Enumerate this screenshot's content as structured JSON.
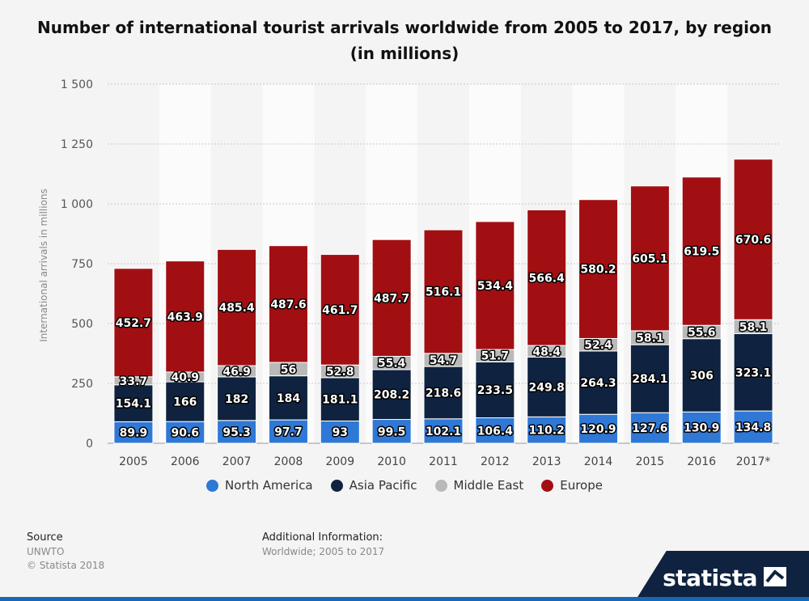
{
  "title_line1": "Number of international tourist arrivals worldwide from 2005 to 2017, by region",
  "title_line2": "(in millions)",
  "chart_data": {
    "type": "bar",
    "stacked": true,
    "title": "Number of international tourist arrivals worldwide from 2005 to 2017, by region (in millions)",
    "ylabel": "International arrivals in millions",
    "xlabel": "",
    "ylim": [
      0,
      1500
    ],
    "yticks": [
      0,
      250,
      500,
      750,
      1000,
      1250,
      1500
    ],
    "ytick_labels": [
      "0",
      "250",
      "500",
      "750",
      "1 000",
      "1 250",
      "1 500"
    ],
    "grid": true,
    "legend_position": "bottom",
    "categories": [
      "2005",
      "2006",
      "2007",
      "2008",
      "2009",
      "2010",
      "2011",
      "2012",
      "2013",
      "2014",
      "2015",
      "2016",
      "2017*"
    ],
    "series": [
      {
        "name": "North America",
        "color": "#2f78d6",
        "values": [
          89.9,
          90.6,
          95.3,
          97.7,
          93,
          99.5,
          102.1,
          106.4,
          110.2,
          120.9,
          127.6,
          130.9,
          134.8
        ]
      },
      {
        "name": "Asia Pacific",
        "color": "#0f2340",
        "values": [
          154.1,
          166,
          182,
          184,
          181.1,
          208.2,
          218.6,
          233.5,
          249.8,
          264.3,
          284.1,
          306,
          323.1
        ]
      },
      {
        "name": "Middle East",
        "color": "#b9b9b9",
        "values": [
          33.7,
          40.9,
          46.9,
          56,
          52.8,
          55.4,
          54.7,
          51.7,
          48.4,
          52.4,
          58.1,
          55.6,
          58.1
        ]
      },
      {
        "name": "Europe",
        "color": "#a20f12",
        "values": [
          452.7,
          463.9,
          485.4,
          487.6,
          461.7,
          487.7,
          516.1,
          534.4,
          566.4,
          580.2,
          605.1,
          619.5,
          670.6
        ]
      }
    ]
  },
  "footer": {
    "source_head": "Source",
    "source_lines": [
      "UNWTO",
      "© Statista 2018"
    ],
    "info_head": "Additional Information:",
    "info_text": "Worldwide; 2005 to 2017"
  },
  "brand": "statista"
}
